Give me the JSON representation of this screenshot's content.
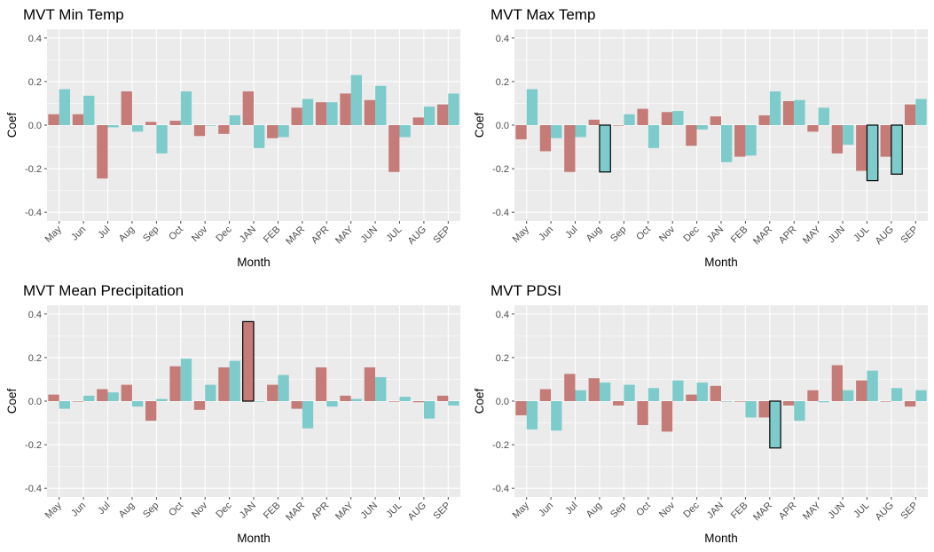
{
  "colors": {
    "series_a": "#c57b78",
    "series_b": "#7ecbcb",
    "panel_bg": "#ebebeb",
    "grid": "#ffffff",
    "highlight_border": "#000000"
  },
  "chart_data": [
    {
      "type": "bar",
      "title": "MVT Min Temp",
      "xlabel": "Month",
      "ylabel": "Coef",
      "ylim": [
        -0.44,
        0.44
      ],
      "yticks": [
        "0.4",
        "0.2",
        "0.0",
        "-0.2",
        "-0.4"
      ],
      "grid": true,
      "legend": "none",
      "categories": [
        "May",
        "Jun",
        "Jul",
        "Aug",
        "Sep",
        "Oct",
        "Nov",
        "Dec",
        "JAN",
        "FEB",
        "MAR",
        "APR",
        "MAY",
        "JUN",
        "JUL",
        "AUG",
        "SEP"
      ],
      "series": [
        {
          "values": [
            0.05,
            0.05,
            -0.245,
            0.155,
            0.015,
            0.02,
            -0.05,
            -0.04,
            0.155,
            -0.06,
            0.08,
            0.105,
            0.145,
            0.115,
            -0.215,
            0.035,
            0.095
          ]
        },
        {
          "values": [
            0.165,
            0.135,
            -0.01,
            -0.03,
            -0.13,
            0.155,
            0.0,
            0.045,
            -0.105,
            -0.055,
            0.12,
            0.105,
            0.23,
            0.18,
            -0.055,
            0.085,
            0.145
          ]
        }
      ],
      "highlighted": []
    },
    {
      "type": "bar",
      "title": "MVT Max Temp",
      "xlabel": "Month",
      "ylabel": "Coef",
      "ylim": [
        -0.44,
        0.44
      ],
      "yticks": [
        "0.4",
        "0.2",
        "0.0",
        "-0.2",
        "-0.4"
      ],
      "grid": true,
      "legend": "none",
      "categories": [
        "May",
        "Jun",
        "Jul",
        "Aug",
        "Sep",
        "Oct",
        "Nov",
        "Dec",
        "JAN",
        "FEB",
        "MAR",
        "APR",
        "MAY",
        "JUN",
        "JUL",
        "AUG",
        "SEP"
      ],
      "series": [
        {
          "values": [
            -0.065,
            -0.12,
            -0.215,
            0.025,
            0.0,
            0.075,
            0.06,
            -0.095,
            0.04,
            -0.145,
            0.045,
            0.11,
            -0.03,
            -0.13,
            -0.21,
            -0.145,
            0.095
          ]
        },
        {
          "values": [
            0.165,
            -0.06,
            -0.055,
            -0.215,
            0.05,
            -0.105,
            0.065,
            -0.02,
            -0.17,
            -0.14,
            0.155,
            0.115,
            0.08,
            -0.09,
            -0.255,
            -0.225,
            0.12
          ]
        }
      ],
      "highlighted": [
        [
          1,
          3
        ],
        [
          1,
          14
        ],
        [
          1,
          15
        ]
      ]
    },
    {
      "type": "bar",
      "title": "MVT Mean Precipitation",
      "xlabel": "Month",
      "ylabel": "Coef",
      "ylim": [
        -0.44,
        0.44
      ],
      "yticks": [
        "0.4",
        "0.2",
        "0.0",
        "-0.2",
        "-0.4"
      ],
      "grid": true,
      "legend": "none",
      "categories": [
        "May",
        "Jun",
        "Jul",
        "Aug",
        "Sep",
        "Oct",
        "Nov",
        "Dec",
        "JAN",
        "FEB",
        "MAR",
        "APR",
        "MAY",
        "JUN",
        "JUL",
        "AUG",
        "SEP"
      ],
      "series": [
        {
          "values": [
            0.03,
            0.0,
            0.055,
            0.075,
            -0.09,
            0.16,
            -0.04,
            0.155,
            0.365,
            0.075,
            -0.035,
            0.155,
            0.025,
            0.155,
            0.0,
            -0.005,
            0.025
          ]
        },
        {
          "values": [
            -0.035,
            0.025,
            0.04,
            -0.025,
            0.01,
            0.195,
            0.075,
            0.185,
            0.0,
            0.12,
            -0.125,
            -0.025,
            0.01,
            0.11,
            0.02,
            -0.08,
            -0.02
          ]
        }
      ],
      "highlighted": [
        [
          0,
          8
        ]
      ]
    },
    {
      "type": "bar",
      "title": "MVT PDSI",
      "xlabel": "Month",
      "ylabel": "Coef",
      "ylim": [
        -0.44,
        0.44
      ],
      "yticks": [
        "0.4",
        "0.2",
        "0.0",
        "-0.2",
        "-0.4"
      ],
      "grid": true,
      "legend": "none",
      "categories": [
        "May",
        "Jun",
        "Jul",
        "Aug",
        "Sep",
        "Oct",
        "Nov",
        "Dec",
        "JAN",
        "FEB",
        "MAR",
        "APR",
        "MAY",
        "JUN",
        "JUL",
        "AUG",
        "SEP"
      ],
      "series": [
        {
          "values": [
            -0.065,
            0.055,
            0.125,
            0.105,
            -0.02,
            -0.11,
            -0.14,
            0.03,
            0.07,
            0.0,
            -0.075,
            -0.02,
            0.05,
            0.165,
            0.095,
            0.0,
            -0.025
          ]
        },
        {
          "values": [
            -0.13,
            -0.135,
            0.05,
            0.085,
            0.075,
            0.06,
            0.095,
            0.085,
            0.0,
            -0.075,
            -0.215,
            -0.09,
            -0.005,
            0.05,
            0.14,
            0.06,
            0.05
          ]
        }
      ],
      "highlighted": [
        [
          1,
          10
        ]
      ]
    }
  ]
}
